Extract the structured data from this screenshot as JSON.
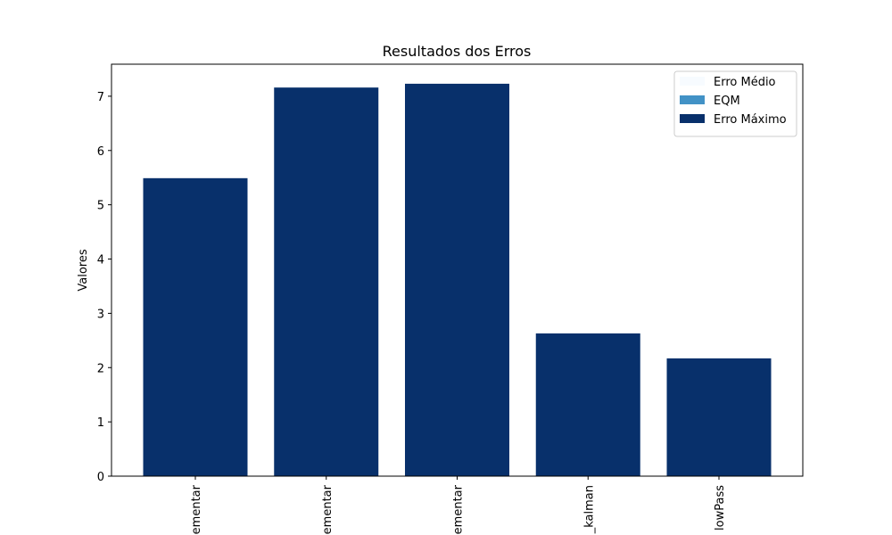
{
  "chart_data": {
    "type": "bar",
    "title": "Resultados dos Erros",
    "y_label": "Valores",
    "categories": [
      "ementar",
      "ementar",
      "ementar",
      "_kalman",
      "lowPass"
    ],
    "series": [
      {
        "name": "Erro Médio",
        "color": "#f7fbff",
        "values": [
          null,
          null,
          null,
          null,
          null
        ]
      },
      {
        "name": "EQM",
        "color": "#4292c6",
        "values": [
          null,
          null,
          null,
          null,
          null
        ]
      },
      {
        "name": "Erro Máximo",
        "color": "#08306b",
        "values": [
          5.49,
          7.16,
          7.23,
          2.63,
          2.17
        ]
      }
    ],
    "ylim": [
      0,
      7.59
    ],
    "yticks": [
      0,
      1,
      2,
      3,
      4,
      5,
      6,
      7
    ],
    "legend": "upper right"
  }
}
